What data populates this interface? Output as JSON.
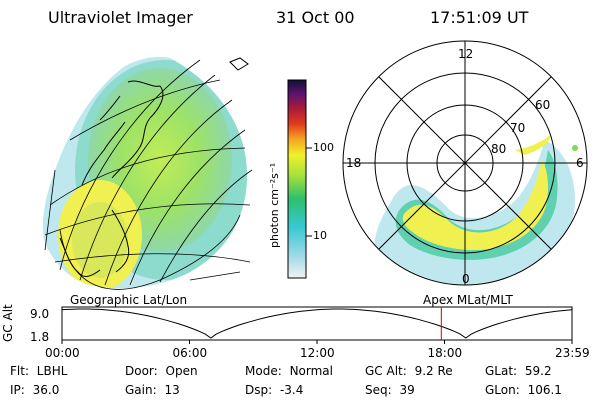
{
  "header": {
    "instrument": "Ultraviolet Imager",
    "date": "31 Oct 00",
    "time": "17:51:09 UT"
  },
  "colorbar": {
    "unit_label": "photon cm⁻²s⁻¹",
    "tick_100": "100",
    "tick_10": "10"
  },
  "polar_plot": {
    "mlt_12": "12",
    "mlt_18": "18",
    "mlt_6": "6",
    "mlt_0": "0",
    "lat_60": "60",
    "lat_70": "70",
    "lat_80": "80"
  },
  "panel_labels": {
    "geographic": "Geographic Lat/Lon",
    "apex": "Apex MLat/MLT"
  },
  "altitude_plot": {
    "axis_label": "GC Alt",
    "y_max": "9.0",
    "y_min": "1.8",
    "x_ticks": [
      "00:00",
      "06:00",
      "12:00",
      "18:00",
      "23:59"
    ],
    "cursor_time_hours": 17.85,
    "colors": {
      "trace": "#000000",
      "cursor": "#cc0000"
    }
  },
  "info": {
    "row1": [
      {
        "label": "Flt:",
        "value": "LBHL"
      },
      {
        "label": "Door:",
        "value": "Open"
      },
      {
        "label": "Mode:",
        "value": "Normal"
      },
      {
        "label": "GC Alt:",
        "value": "9.2 Re"
      },
      {
        "label": "GLat:",
        "value": "59.2"
      }
    ],
    "row2": [
      {
        "label": "IP:",
        "value": "36.0"
      },
      {
        "label": "Gain:",
        "value": "13"
      },
      {
        "label": "Dsp:",
        "value": "-3.4"
      },
      {
        "label": "Seq:",
        "value": "39"
      },
      {
        "label": "GLon:",
        "value": "106.1"
      }
    ]
  }
}
